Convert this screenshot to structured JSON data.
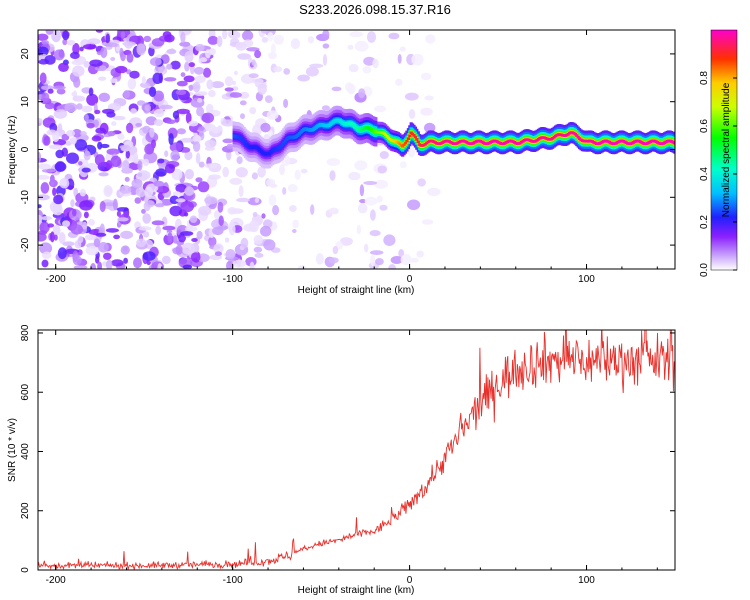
{
  "title": "S233.2026.098.15.37.R16",
  "chart_data": [
    {
      "type": "heatmap",
      "title": "S233.2026.098.15.37.R16",
      "xlabel": "Height of straight line (km)",
      "ylabel": "Frequency (Hz)",
      "xlim": [
        -210,
        150
      ],
      "ylim": [
        -25,
        25
      ],
      "x_ticks": [
        -200,
        -100,
        0,
        100
      ],
      "x_tick_labels": [
        "-200",
        "-100",
        "0",
        "100"
      ],
      "y_ticks": [
        -20,
        -10,
        0,
        10,
        20
      ],
      "y_tick_labels": [
        "-20",
        "-10",
        "0",
        "10",
        "20"
      ],
      "ridge": {
        "x": [
          -100,
          -90,
          -80,
          -70,
          -60,
          -50,
          -40,
          -30,
          -20,
          -10,
          -5,
          0,
          5,
          10,
          20,
          40,
          60,
          80,
          90,
          100,
          110,
          150
        ],
        "y": [
          3,
          0.5,
          -1,
          2,
          4,
          5,
          6,
          4.5,
          4,
          2,
          0.5,
          3.5,
          1,
          1.5,
          1.5,
          1.5,
          1.5,
          2.5,
          3.5,
          1.5,
          1.5,
          1.5
        ],
        "amplitude": [
          0.25,
          0.22,
          0.22,
          0.25,
          0.28,
          0.32,
          0.38,
          0.45,
          0.6,
          0.75,
          0.85,
          0.9,
          0.92,
          0.95,
          0.97,
          0.99,
          0.98,
          0.96,
          0.97,
          0.98,
          0.99,
          0.99
        ]
      }
    },
    {
      "type": "line",
      "xlabel": "Height of straight line (km)",
      "ylabel": "SNR (10 * v/v)",
      "xlim": [
        -210,
        150
      ],
      "ylim": [
        0,
        810
      ],
      "x_ticks": [
        -200,
        -100,
        0,
        100
      ],
      "x_tick_labels": [
        "-200",
        "-100",
        "0",
        "100"
      ],
      "y_ticks": [
        0,
        200,
        400,
        600,
        800
      ],
      "y_tick_labels": [
        "0",
        "200",
        "400",
        "600",
        "800"
      ],
      "series": [
        {
          "name": "SNR",
          "color": "#e8302b",
          "x": [
            -210,
            -150,
            -100,
            -90,
            -80,
            -70,
            -60,
            -50,
            -40,
            -30,
            -20,
            -10,
            0,
            10,
            20,
            30,
            40,
            50,
            60,
            70,
            80,
            90,
            100,
            110,
            120,
            130,
            140,
            150
          ],
          "y": [
            15,
            15,
            20,
            25,
            30,
            45,
            70,
            90,
            100,
            120,
            130,
            170,
            220,
            290,
            380,
            470,
            560,
            630,
            680,
            700,
            710,
            710,
            705,
            710,
            710,
            705,
            710,
            710
          ]
        }
      ]
    }
  ],
  "colorbar": {
    "label": "Normalized spectral amplitude",
    "min": 0.0,
    "max": 1.0,
    "ticks": [
      0.0,
      0.2,
      0.4,
      0.6,
      0.8
    ],
    "tick_labels": [
      "0.0",
      "0.2",
      "0.4",
      "0.6",
      "0.8"
    ]
  }
}
